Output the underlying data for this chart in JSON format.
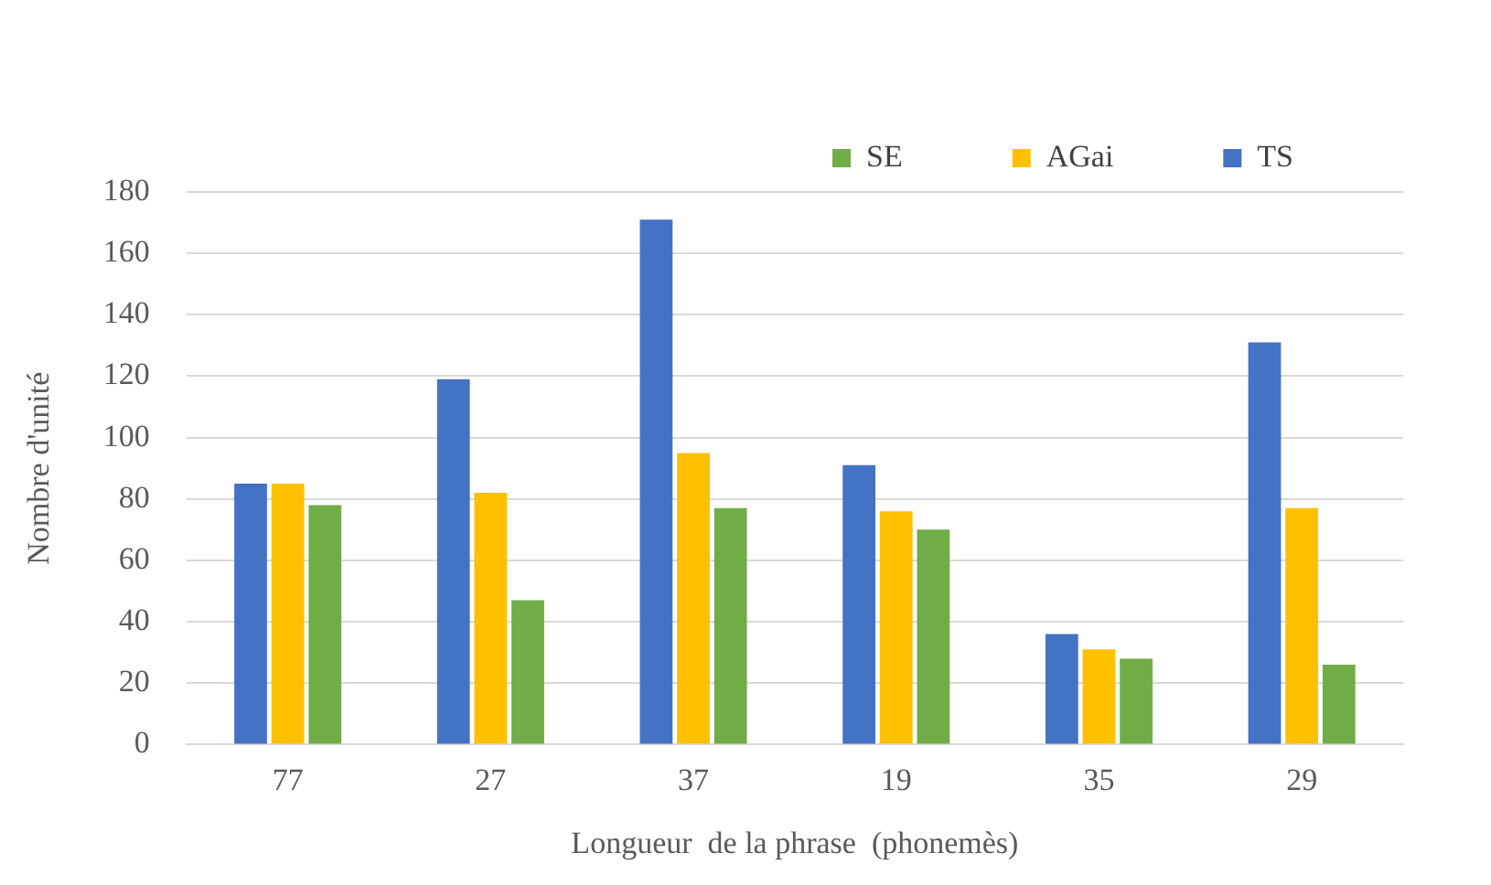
{
  "chart_data": {
    "type": "bar",
    "xlabel": "Longueur  de la phrase  (phonemès)",
    "ylabel": "Nombre d'unité",
    "categories": [
      "77",
      "27",
      "37",
      "19",
      "35",
      "29"
    ],
    "series": [
      {
        "name": "TS",
        "color": "#4472c4",
        "values": [
          85,
          119,
          171,
          91,
          36,
          131
        ]
      },
      {
        "name": "AGai",
        "color": "#ffc000",
        "values": [
          85,
          82,
          95,
          76,
          31,
          77
        ]
      },
      {
        "name": "SE",
        "color": "#70ad47",
        "values": [
          78,
          47,
          77,
          70,
          28,
          26
        ]
      }
    ],
    "ylim": [
      0,
      180
    ],
    "yticks": [
      0,
      20,
      40,
      60,
      80,
      100,
      120,
      140,
      160,
      180
    ],
    "grid": "y",
    "legend": "top right"
  }
}
